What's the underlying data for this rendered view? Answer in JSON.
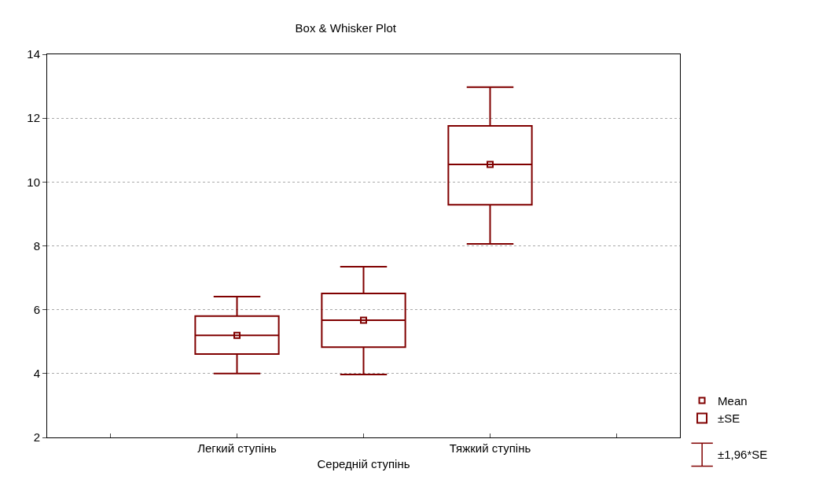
{
  "chart_data": {
    "type": "box",
    "title": "Box & Whisker Plot",
    "categories": [
      null,
      "Легкий ступінь",
      "Середній ступінь",
      "Тяжкий ступінь",
      null
    ],
    "series": [
      {
        "type": "scatter",
        "name": "Mean",
        "color": "#800000",
        "marker": "square",
        "values": [
          null,
          5.2,
          5.67,
          10.55,
          null
        ]
      },
      {
        "name": "±SE",
        "color": "#800000",
        "boxes": [
          null,
          {
            "low": 4.0,
            "q1": 4.61,
            "median": 5.2,
            "q3": 5.8,
            "high": 6.41
          },
          {
            "low": 3.97,
            "q1": 4.83,
            "median": 5.67,
            "q3": 6.51,
            "high": 7.35
          },
          {
            "low": 8.06,
            "q1": 9.29,
            "median": 10.55,
            "q3": 11.76,
            "high": 12.97
          },
          null
        ]
      }
    ],
    "annotations": [
      "±1,96*SE"
    ],
    "ylim": [
      2,
      14
    ],
    "yticks": [
      2,
      4,
      6,
      8,
      10,
      12,
      14
    ],
    "grid": "y",
    "legend": "bottom right"
  }
}
